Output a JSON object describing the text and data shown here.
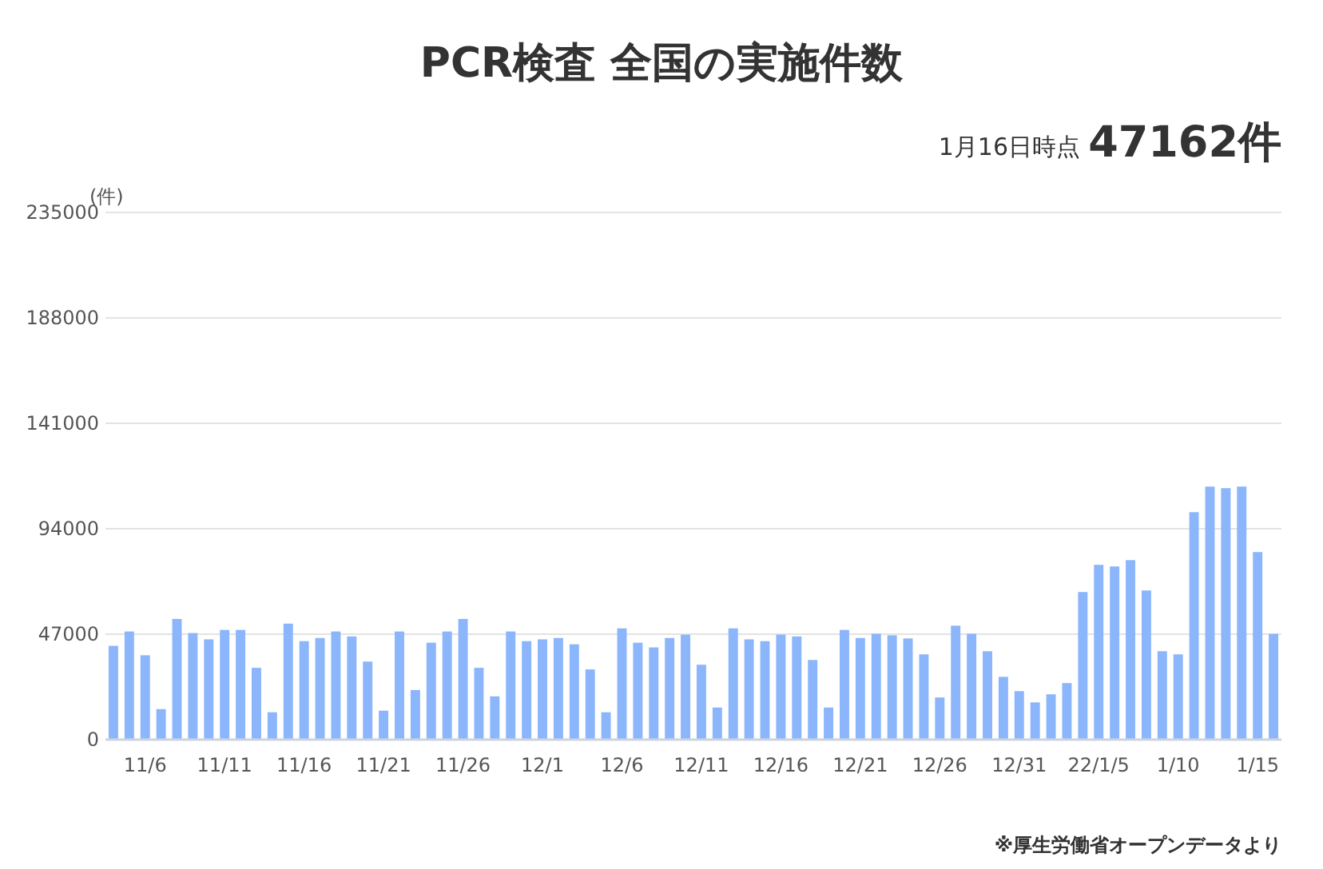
{
  "chart_data": {
    "type": "bar",
    "title": "PCR検査 全国の実施件数",
    "annotations": [
      "1月16日時点",
      "47162件",
      "※厚生労働省オープンデータより"
    ],
    "ylabel": "(件)",
    "categories": [
      null,
      null,
      "11/6",
      null,
      null,
      null,
      null,
      "11/11",
      null,
      null,
      null,
      null,
      "11/16",
      null,
      null,
      null,
      null,
      "11/21",
      null,
      null,
      null,
      null,
      "11/26",
      null,
      null,
      null,
      null,
      "12/1",
      null,
      null,
      null,
      null,
      "12/6",
      null,
      null,
      null,
      null,
      "12/11",
      null,
      null,
      null,
      null,
      "12/16",
      null,
      null,
      null,
      null,
      "12/21",
      null,
      null,
      null,
      null,
      "12/26",
      null,
      null,
      null,
      null,
      "12/31",
      null,
      null,
      null,
      null,
      "22/1/5",
      null,
      null,
      null,
      null,
      "1/10",
      null,
      null,
      null,
      null,
      "1/15",
      null
    ],
    "values": [
      41800,
      48200,
      37600,
      13600,
      53800,
      47500,
      44700,
      48900,
      48900,
      32000,
      12200,
      51700,
      43900,
      45300,
      48200,
      46000,
      34800,
      12900,
      48200,
      22100,
      43200,
      48200,
      53800,
      32000,
      19300,
      48200,
      43900,
      44700,
      45300,
      42500,
      31300,
      12200,
      49600,
      43200,
      41100,
      45300,
      46800,
      33400,
      14300,
      49600,
      44700,
      43900,
      46800,
      46000,
      35500,
      14300,
      48900,
      45300,
      47200,
      46500,
      45100,
      38000,
      18800,
      50800,
      47200,
      39400,
      28000,
      21600,
      16600,
      20200,
      25200,
      65800,
      77900,
      77200,
      80000,
      66500,
      39400,
      38000,
      101400,
      112800,
      112100,
      112800,
      83600,
      47162
    ],
    "color": "#8cb6fb",
    "ylim": [
      0,
      235000
    ],
    "yticks": [
      0,
      47000,
      94000,
      141000,
      188000,
      235000
    ],
    "grid": "y"
  }
}
